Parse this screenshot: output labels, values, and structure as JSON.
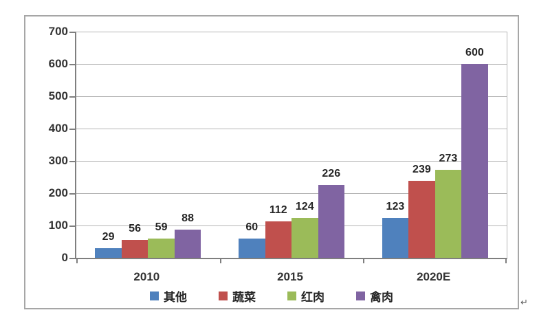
{
  "chart_data": {
    "type": "bar",
    "title": "",
    "categories": [
      "2010",
      "2015",
      "2020E"
    ],
    "series": [
      {
        "name": "其他",
        "color": "#4F81BD",
        "values": [
          29,
          60,
          123
        ]
      },
      {
        "name": "蔬菜",
        "color": "#C0504D",
        "values": [
          56,
          112,
          239
        ]
      },
      {
        "name": "红肉",
        "color": "#9BBB59",
        "values": [
          59,
          124,
          273
        ]
      },
      {
        "name": "禽肉",
        "color": "#8064A2",
        "values": [
          88,
          226,
          600
        ]
      }
    ],
    "xlabel": "",
    "ylabel": "",
    "ylim": [
      0,
      700
    ],
    "yticks": [
      0,
      100,
      200,
      300,
      400,
      500,
      600,
      700
    ],
    "grid": true,
    "legend_position": "bottom",
    "value_labels": true,
    "colors": {
      "grid": "#b3b3b3",
      "axis": "#7f7f7f",
      "text": "#262626",
      "frame_border": "#a6a6a6"
    }
  },
  "misc": {
    "return_mark": "↵"
  }
}
